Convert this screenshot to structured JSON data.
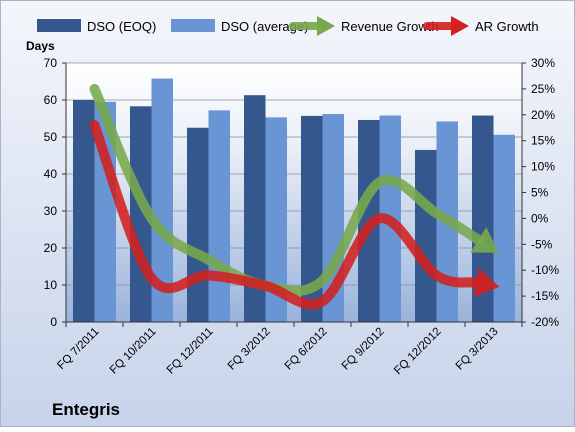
{
  "company": "Entegris",
  "colors": {
    "dso_eoq": "#34588E",
    "dso_avg": "#6A95D5",
    "revenue_growth": "#77A84B",
    "ar_growth": "#D32020"
  },
  "chart_data": {
    "type": "bar",
    "categories": [
      "FQ 7/2011",
      "FQ 10/2011",
      "FQ 12/2011",
      "FQ 3/2012",
      "FQ 6/2012",
      "FQ 9/2012",
      "FQ 12/2012",
      "FQ 3/2013"
    ],
    "series": [
      {
        "name": "DSO (EOQ)",
        "kind": "bar",
        "axis": "left",
        "values": [
          60,
          58.3,
          52.5,
          61.3,
          55.7,
          54.6,
          46.5,
          55.8
        ]
      },
      {
        "name": "DSO (average)",
        "kind": "bar",
        "axis": "left",
        "values": [
          59.5,
          65.8,
          57.2,
          55.3,
          56.2,
          55.8,
          54.2,
          50.6
        ]
      },
      {
        "name": "Revenue Growth",
        "kind": "arrow-line",
        "axis": "right",
        "values": [
          25,
          0,
          -8,
          -13,
          -12,
          7,
          1,
          -6
        ]
      },
      {
        "name": "AR Growth",
        "kind": "arrow-line",
        "axis": "right",
        "values": [
          18,
          -11.5,
          -11,
          -13,
          -16,
          0,
          -11,
          -13
        ]
      }
    ],
    "ylabel": "Days",
    "ylim": [
      0,
      70
    ],
    "yticks": [
      0,
      10,
      20,
      30,
      40,
      50,
      60,
      70
    ],
    "y2lim": [
      -20,
      30
    ],
    "y2ticks": [
      "-20%",
      "-15%",
      "-10%",
      "-5%",
      "0%",
      "5%",
      "10%",
      "15%",
      "20%",
      "25%",
      "30%"
    ],
    "legend": "top",
    "grid": true
  }
}
